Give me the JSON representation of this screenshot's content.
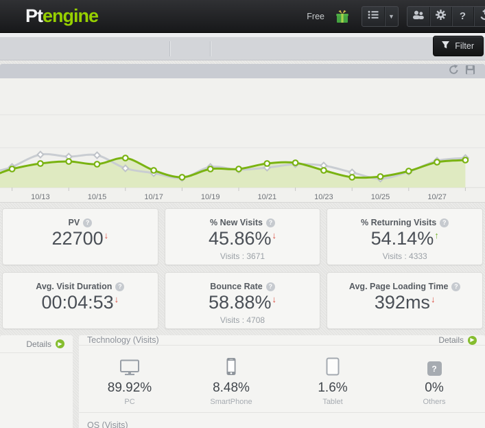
{
  "header": {
    "logo_pt": "Pt",
    "logo_engine": "engine",
    "plan_label": "Free",
    "icons": [
      "gift-icon",
      "list-icon",
      "caret-down-icon",
      "users-icon",
      "gear-icon",
      "help-icon",
      "power-icon"
    ]
  },
  "toolbar": {
    "filter_label": "Filter",
    "icons": [
      "copy-pages-icon",
      "report-doc-icon"
    ]
  },
  "panelbar": {
    "icons": [
      "refresh-icon",
      "save-icon"
    ]
  },
  "chart_data": {
    "type": "line",
    "x": [
      "10/12",
      "10/13",
      "10/14",
      "10/15",
      "10/16",
      "10/17",
      "10/18",
      "10/19",
      "10/20",
      "10/21",
      "10/22",
      "10/23",
      "10/24",
      "10/25",
      "10/26",
      "10/27",
      "10/28"
    ],
    "tick_labels": [
      "10/13",
      "10/15",
      "10/17",
      "10/19",
      "10/21",
      "10/23",
      "10/25",
      "10/27"
    ],
    "ylim": [
      0,
      60
    ],
    "y_axis_labeled": false,
    "grid": true,
    "legend": "none",
    "series": [
      {
        "name": "comparison-period-visits",
        "color": "#c9cdd2",
        "marker": "diamond",
        "fill": false,
        "edge_start": 25,
        "values": [
          30,
          48,
          45,
          47,
          28,
          21,
          14,
          30,
          26,
          29,
          34,
          32,
          22,
          13,
          23,
          39,
          43
        ]
      },
      {
        "name": "current-period-visits",
        "color": "#7ab312",
        "marker": "circle",
        "fill": true,
        "fill_color": "#dfeac1",
        "edge_start": 21,
        "values": [
          27,
          35,
          38,
          34,
          43,
          25,
          15,
          27,
          27,
          35,
          36,
          25,
          15,
          16,
          24,
          37,
          40
        ]
      }
    ]
  },
  "metrics": {
    "cards": [
      {
        "title": "PV",
        "value": "22700",
        "trend": "down",
        "sub": ""
      },
      {
        "title": "% New Visits",
        "value": "45.86%",
        "trend": "down",
        "sub": "Visits : 3671"
      },
      {
        "title": "% Returning Visits",
        "value": "54.14%",
        "trend": "up",
        "sub": "Visits : 4333"
      },
      {
        "title": "Avg. Visit Duration",
        "value": "00:04:53",
        "trend": "down",
        "sub": ""
      },
      {
        "title": "Bounce Rate",
        "value": "58.88%",
        "trend": "down",
        "sub": "Visits : 4708"
      },
      {
        "title": "Avg. Page Loading Time",
        "value": "392ms",
        "trend": "down",
        "sub": ""
      }
    ]
  },
  "panels": {
    "left": {
      "details_label": "Details"
    },
    "technology": {
      "title": "Technology (Visits)",
      "details_label": "Details",
      "items": [
        {
          "icon": "pc-icon",
          "value": "89.92%",
          "label": "PC"
        },
        {
          "icon": "smartphone-icon",
          "value": "8.48%",
          "label": "SmartPhone"
        },
        {
          "icon": "tablet-icon",
          "value": "1.6%",
          "label": "Tablet"
        },
        {
          "icon": "others-icon",
          "value": "0%",
          "label": "Others"
        }
      ]
    },
    "os": {
      "title": "OS (Visits)"
    }
  },
  "colors": {
    "brand_green": "#97d000",
    "chart_green": "#7ab312",
    "chart_green_fill": "#dfeac1",
    "chart_gray": "#c9cdd2",
    "trend_down_red": "#db4a3f",
    "trend_up_green": "#76b52c",
    "details_green": "#85bd2f",
    "header_bg": "#1d1f22",
    "panelbar_bg": "#c9ccd2"
  }
}
